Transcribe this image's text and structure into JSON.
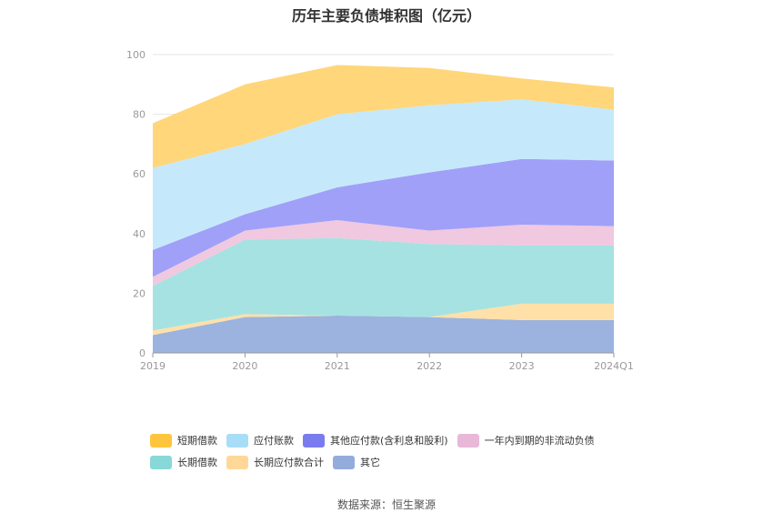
{
  "title": "历年主要负债堆积图（亿元）",
  "source": "数据来源：恒生聚源",
  "chart_data": {
    "type": "area",
    "stacked": true,
    "categories": [
      "2019",
      "2020",
      "2021",
      "2022",
      "2023",
      "2024Q1"
    ],
    "ylim": [
      0,
      100
    ],
    "yticks": [
      0,
      20,
      40,
      60,
      80,
      100
    ],
    "grid": true,
    "legend_position": "bottom",
    "series": [
      {
        "name": "其它",
        "color": "#9bb3de",
        "values": [
          6.0,
          12.0,
          12.5,
          12.0,
          11.0,
          11.0
        ]
      },
      {
        "name": "长期应付款合计",
        "color": "#ffe0a8",
        "values": [
          1.5,
          1.0,
          0.0,
          0.0,
          5.5,
          5.5
        ]
      },
      {
        "name": "长期借款",
        "color": "#a6e2e1",
        "values": [
          15.0,
          25.0,
          26.0,
          24.5,
          19.5,
          19.5
        ]
      },
      {
        "name": "一年内到期的非流动负债",
        "color": "#f0c8e0",
        "values": [
          3.0,
          3.0,
          6.0,
          4.5,
          7.0,
          6.5
        ]
      },
      {
        "name": "其他应付款(含利息和股利)",
        "color": "#a0a0f8",
        "values": [
          9.0,
          5.5,
          11.0,
          19.5,
          22.0,
          22.0
        ]
      },
      {
        "name": "应付账款",
        "color": "#c5e9fb",
        "values": [
          27.5,
          23.5,
          24.5,
          22.5,
          20.0,
          17.0
        ]
      },
      {
        "name": "短期借款",
        "color": "#ffd67a",
        "values": [
          15.0,
          20.0,
          16.5,
          12.5,
          7.0,
          7.5
        ]
      }
    ]
  },
  "legend": {
    "rows": [
      [
        {
          "label": "短期借款",
          "color": "#ffc53d"
        },
        {
          "label": "应付账款",
          "color": "#a8ddf8"
        },
        {
          "label": "其他应付款(含利息和股利)",
          "color": "#7b7bf0"
        },
        {
          "label": "一年内到期的非流动负债",
          "color": "#e8b8d8"
        }
      ],
      [
        {
          "label": "长期借款",
          "color": "#88d8d8"
        },
        {
          "label": "长期应付款合计",
          "color": "#ffd899"
        },
        {
          "label": "其它",
          "color": "#93acdc"
        }
      ]
    ]
  }
}
